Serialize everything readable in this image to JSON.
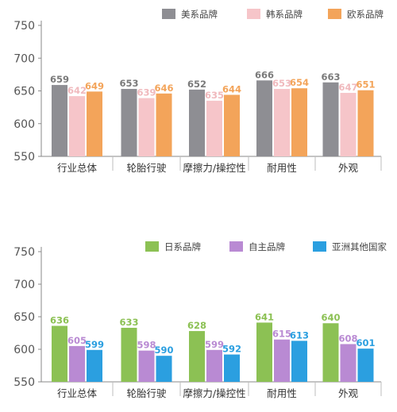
{
  "chart_data": [
    {
      "type": "bar",
      "categories": [
        "行业总体",
        "轮胎行驶",
        "摩擦力/操控性",
        "耐用性",
        "外观"
      ],
      "series": [
        {
          "name": "美系品牌",
          "values": [
            659,
            653,
            652,
            666,
            663
          ],
          "color": "#8e8e93"
        },
        {
          "name": "韩系品牌",
          "values": [
            642,
            639,
            635,
            653,
            647
          ],
          "color": "#f6c5c9"
        },
        {
          "name": "欧系品牌",
          "values": [
            649,
            646,
            644,
            654,
            651
          ],
          "color": "#f3a45a"
        }
      ],
      "yticks": [
        "550",
        "600",
        "650",
        "700",
        "750"
      ],
      "ylim": [
        550,
        750
      ],
      "legend_position": "top-right",
      "grid": false
    },
    {
      "type": "bar",
      "categories": [
        "行业总体",
        "轮胎行驶",
        "摩擦力/操控性",
        "耐用性",
        "外观"
      ],
      "series": [
        {
          "name": "日系品牌",
          "values": [
            636,
            633,
            628,
            641,
            640
          ],
          "color": "#8cc154"
        },
        {
          "name": "自主品牌",
          "values": [
            605,
            598,
            599,
            615,
            608
          ],
          "color": "#b98ad3"
        },
        {
          "name": "亚洲其他国家",
          "values": [
            599,
            590,
            592,
            613,
            601
          ],
          "color": "#2b9fe0"
        }
      ],
      "yticks": [
        "550",
        "600",
        "650",
        "700",
        "750"
      ],
      "ylim": [
        550,
        750
      ],
      "legend_position": "top-right",
      "grid": false
    }
  ]
}
